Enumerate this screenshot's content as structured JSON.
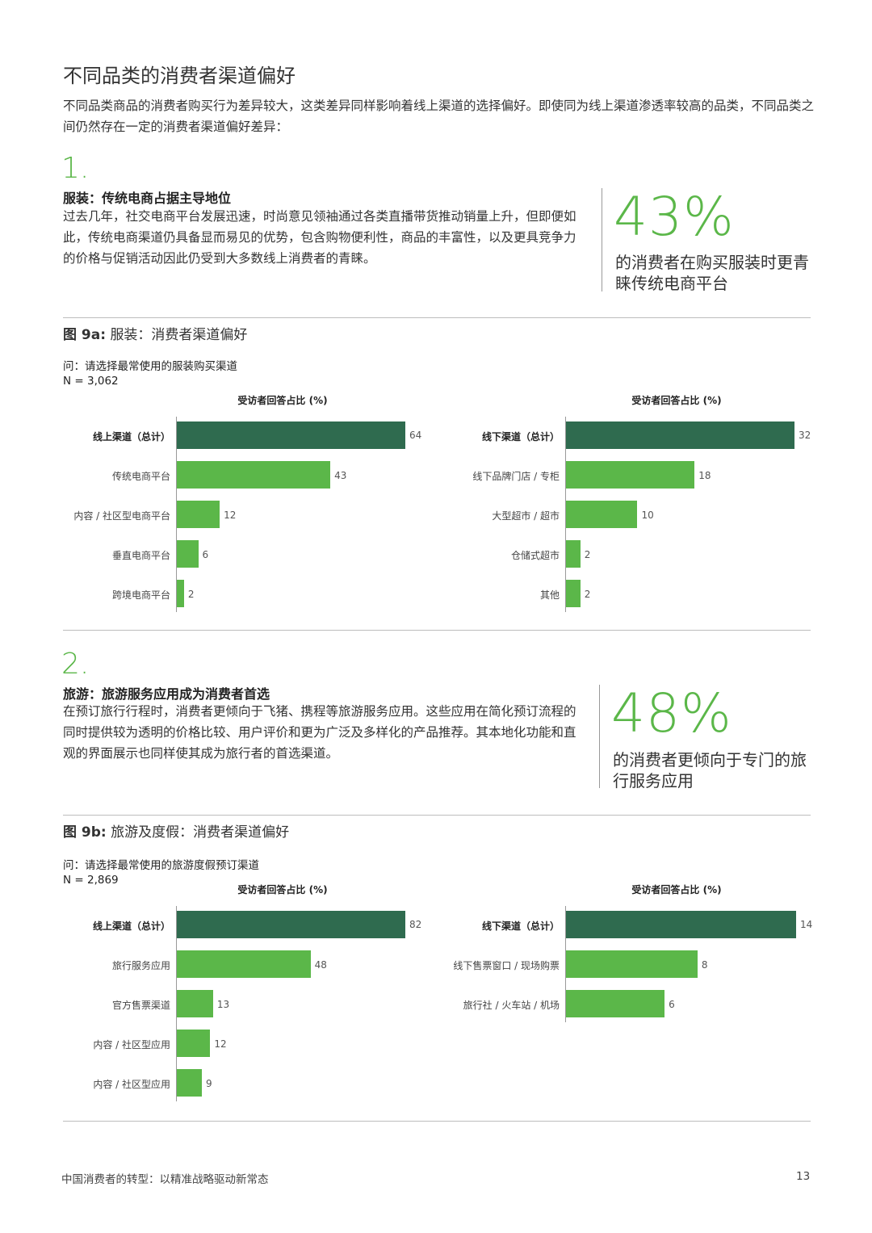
{
  "title": "不同品类的消费者渠道偏好",
  "intro": "不同品类商品的消费者购买行为差异较大，这类差异同样影响着线上渠道的选择偏好。即使同为线上渠道渗透率较高的品类，不同品类之间仍然存在一定的消费者渠道偏好差异：",
  "section1": {
    "number": "1.",
    "heading": "服装：传统电商占据主导地位",
    "body": "过去几年，社交电商平台发展迅速，时尚意见领袖通过各类直播带货推动销量上升，但即便如此，传统电商渠道仍具备显而易见的优势，包含购物便利性，商品的丰富性，以及更具竞争力的价格与促销活动因此仍受到大多数线上消费者的青睐。",
    "stat": "43%",
    "stat_caption": "的消费者在购买服装时更青睐传统电商平台"
  },
  "fig9a": {
    "label": "图 9a:",
    "title": "服装：消费者渠道偏好",
    "question": "问：请选择最常使用的服装购买渠道",
    "n": "N = 3,062"
  },
  "section2": {
    "number": "2.",
    "heading": "旅游：旅游服务应用成为消费者首选",
    "body": "在预订旅行行程时，消费者更倾向于飞猪、携程等旅游服务应用。这些应用在简化预订流程的同时提供较为透明的价格比较、用户评价和更为广泛及多样化的产品推荐。其本地化功能和直观的界面展示也同样使其成为旅行者的首选渠道。",
    "stat": "48%",
    "stat_caption": "的消费者更倾向于专门的旅行服务应用"
  },
  "fig9b": {
    "label": "图 9b:",
    "title": "旅游及度假：消费者渠道偏好",
    "question": "问：请选择最常使用的旅游度假预订渠道",
    "n": "N = 2,869"
  },
  "chart_data": [
    {
      "type": "bar",
      "orientation": "horizontal",
      "title": "受访者回答占比 (%)",
      "categories": [
        "线上渠道（总计）",
        "传统电商平台",
        "内容 / 社区型电商平台",
        "垂直电商平台",
        "跨境电商平台"
      ],
      "values": [
        64,
        43,
        12,
        6,
        2
      ],
      "highlight_first": true
    },
    {
      "type": "bar",
      "orientation": "horizontal",
      "title": "受访者回答占比 (%)",
      "categories": [
        "线下渠道（总计）",
        "线下品牌门店 / 专柜",
        "大型超市 / 超市",
        "仓储式超市",
        "其他"
      ],
      "values": [
        32,
        18,
        10,
        2,
        2
      ],
      "highlight_first": true
    },
    {
      "type": "bar",
      "orientation": "horizontal",
      "title": "受访者回答占比 (%)",
      "categories": [
        "线上渠道（总计）",
        "旅行服务应用",
        "官方售票渠道",
        "内容 / 社区型应用",
        "内容 / 社区型应用"
      ],
      "values": [
        82,
        48,
        13,
        12,
        9
      ],
      "highlight_first": true
    },
    {
      "type": "bar",
      "orientation": "horizontal",
      "title": "受访者回答占比 (%)",
      "categories": [
        "线下渠道（总计）",
        "线下售票窗口 / 现场购票",
        "旅行社 / 火车站 / 机场"
      ],
      "values": [
        14,
        8,
        6
      ],
      "highlight_first": true
    }
  ],
  "colors": {
    "accent_green": "#5bb749",
    "dark_green": "#2f6b4f"
  },
  "footer": {
    "text": "中国消费者的转型：以精准战略驱动新常态",
    "page": "13"
  }
}
